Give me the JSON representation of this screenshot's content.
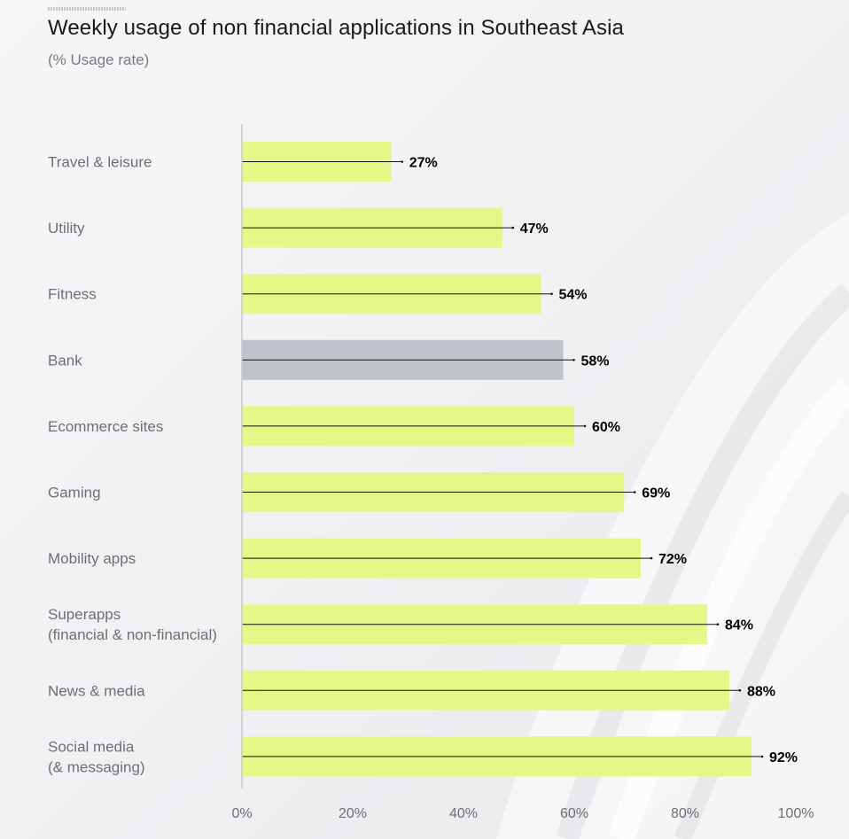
{
  "title": "Weekly usage of non financial applications in Southeast Asia",
  "subtitle": "(% Usage rate)",
  "colors": {
    "bar": "#e6f788",
    "highlight": "#bfc3ca",
    "axis": "#c8c8cc",
    "marker_line": "#111111"
  },
  "chart_data": {
    "type": "bar",
    "orientation": "horizontal",
    "categories": [
      [
        "Travel & leisure"
      ],
      [
        "Utility"
      ],
      [
        "Fitness"
      ],
      [
        "Bank"
      ],
      [
        "Ecommerce sites"
      ],
      [
        "Gaming"
      ],
      [
        "Mobility apps"
      ],
      [
        "Superapps",
        "(financial & non-financial)"
      ],
      [
        "News & media"
      ],
      [
        "Social media",
        "(& messaging)"
      ]
    ],
    "values": [
      27,
      47,
      54,
      58,
      60,
      69,
      72,
      84,
      88,
      92
    ],
    "value_labels": [
      "27%",
      "47%",
      "54%",
      "58%",
      "60%",
      "69%",
      "72%",
      "84%",
      "88%",
      "92%"
    ],
    "highlight_category": "Bank",
    "xlim": [
      0,
      100
    ],
    "xticks": [
      0,
      20,
      40,
      60,
      80,
      100
    ],
    "xtick_labels": [
      "0%",
      "20%",
      "40%",
      "60%",
      "80%",
      "100%"
    ],
    "grid": false
  }
}
